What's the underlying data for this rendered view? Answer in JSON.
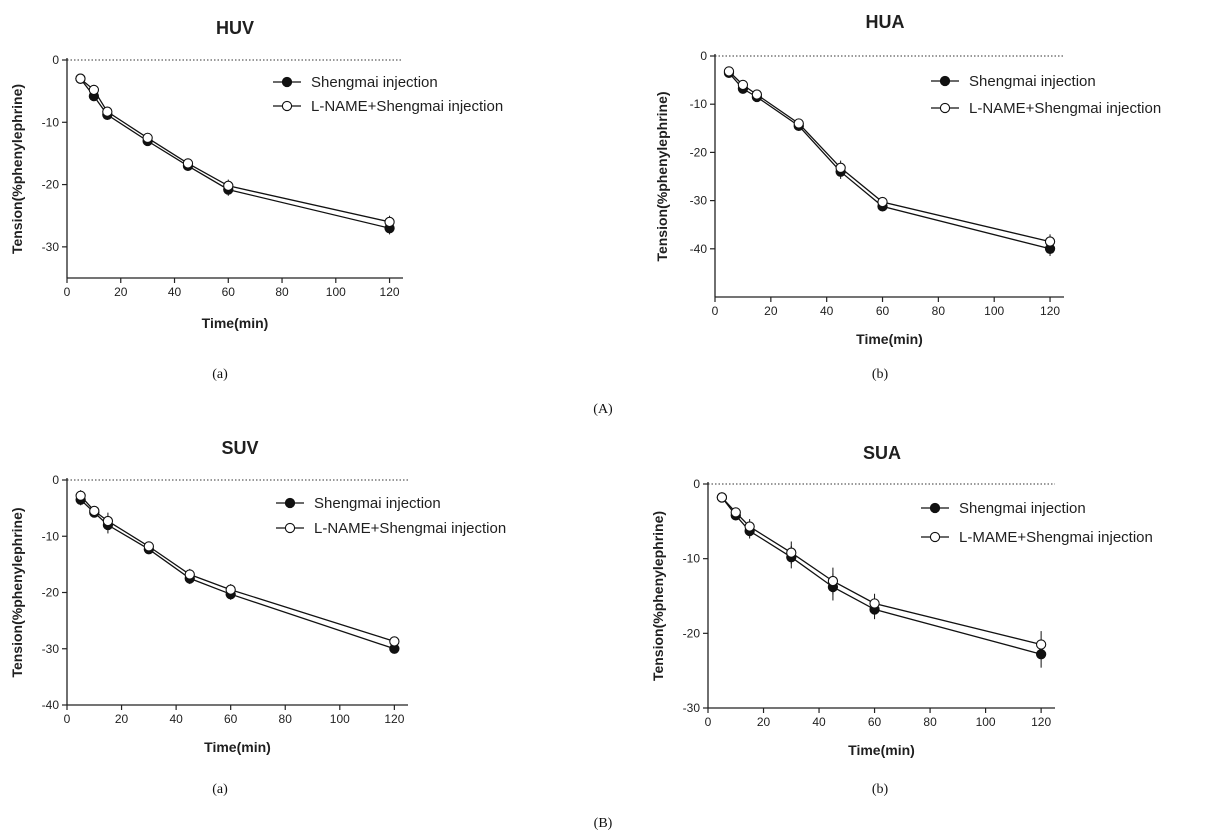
{
  "captions": {
    "group_a": "(A)",
    "group_b": "(B)",
    "sub": [
      "(a)",
      "(b)",
      "(a)",
      "(b)"
    ]
  },
  "chart_data": [
    {
      "type": "line",
      "title": "HUV",
      "xlabel": "Time(min)",
      "ylabel": "Tension(%phenylephrine)",
      "xlim": [
        0,
        125
      ],
      "ylim": [
        -35,
        0
      ],
      "xticks": [
        0,
        20,
        40,
        60,
        80,
        100,
        120
      ],
      "yticks": [
        0,
        -10,
        -20,
        -30
      ],
      "x": [
        5,
        10,
        15,
        30,
        45,
        60,
        120
      ],
      "series": [
        {
          "name": "Shengmai injection",
          "marker": "filled",
          "values": [
            -3,
            -5.8,
            -8.8,
            -13,
            -17,
            -20.8,
            -27
          ],
          "err": [
            0.5,
            0.8,
            0.8,
            0.8,
            0.8,
            1,
            1
          ]
        },
        {
          "name": "L-NAME+Shengmai injection",
          "marker": "open",
          "values": [
            -3,
            -4.8,
            -8.3,
            -12.5,
            -16.6,
            -20.2,
            -26
          ],
          "err": [
            0.5,
            0.8,
            0.8,
            0.8,
            0.8,
            1,
            1
          ]
        }
      ]
    },
    {
      "type": "line",
      "title": "HUA",
      "xlabel": "Time(min)",
      "ylabel": "Tension(%phenylephrine)",
      "xlim": [
        0,
        125
      ],
      "ylim": [
        -50,
        0
      ],
      "xticks": [
        0,
        20,
        40,
        60,
        80,
        100,
        120
      ],
      "yticks": [
        0,
        -10,
        -20,
        -30,
        -40
      ],
      "x": [
        5,
        10,
        15,
        30,
        45,
        60,
        120
      ],
      "series": [
        {
          "name": "Shengmai injection",
          "marker": "filled",
          "values": [
            -3.5,
            -6.8,
            -8.5,
            -14.5,
            -24,
            -31.2,
            -40
          ],
          "err": [
            0.6,
            1,
            1,
            1,
            1.5,
            1,
            1.5
          ]
        },
        {
          "name": "L-NAME+Shengmai injection",
          "marker": "open",
          "values": [
            -3.2,
            -6,
            -8,
            -14,
            -23.2,
            -30.3,
            -38.5
          ],
          "err": [
            0.6,
            1,
            1,
            1,
            1.5,
            1,
            1.5
          ]
        }
      ]
    },
    {
      "type": "line",
      "title": "SUV",
      "xlabel": "Time(min)",
      "ylabel": "Tension(%phenylephrine)",
      "xlim": [
        0,
        125
      ],
      "ylim": [
        -40,
        0
      ],
      "xticks": [
        0,
        20,
        40,
        60,
        80,
        100,
        120
      ],
      "yticks": [
        0,
        -10,
        -20,
        -30,
        -40
      ],
      "x": [
        5,
        10,
        15,
        30,
        45,
        60,
        120
      ],
      "series": [
        {
          "name": "Shengmai injection",
          "marker": "filled",
          "values": [
            -3.5,
            -5.8,
            -8,
            -12.3,
            -17.5,
            -20.3,
            -30
          ],
          "err": [
            1,
            0.8,
            1.5,
            0.8,
            1,
            1,
            0.6
          ]
        },
        {
          "name": "L-NAME+Shengmai injection",
          "marker": "open",
          "values": [
            -2.8,
            -5.5,
            -7.3,
            -11.8,
            -16.8,
            -19.5,
            -28.7
          ],
          "err": [
            1,
            0.8,
            1.5,
            0.8,
            1,
            1,
            0.6
          ]
        }
      ]
    },
    {
      "type": "line",
      "title": "SUA",
      "xlabel": "Time(min)",
      "ylabel": "Tension(%phenylephrine)",
      "xlim": [
        0,
        125
      ],
      "ylim": [
        -30,
        0
      ],
      "xticks": [
        0,
        20,
        40,
        60,
        80,
        100,
        120
      ],
      "yticks": [
        0,
        -10,
        -20,
        -30
      ],
      "x": [
        5,
        10,
        15,
        30,
        45,
        60,
        120
      ],
      "series": [
        {
          "name": "Shengmai injection",
          "marker": "filled",
          "values": [
            -1.8,
            -4.2,
            -6.3,
            -9.8,
            -13.8,
            -16.8,
            -22.8
          ],
          "err": [
            0.4,
            0.6,
            1,
            1.5,
            1.8,
            1.3,
            1.8
          ]
        },
        {
          "name": "L-MAME+Shengmai injection",
          "marker": "open",
          "values": [
            -1.8,
            -3.8,
            -5.7,
            -9.2,
            -13,
            -16,
            -21.5
          ],
          "err": [
            0.4,
            0.6,
            1,
            1.5,
            1.8,
            1.3,
            1.8
          ]
        }
      ]
    }
  ]
}
